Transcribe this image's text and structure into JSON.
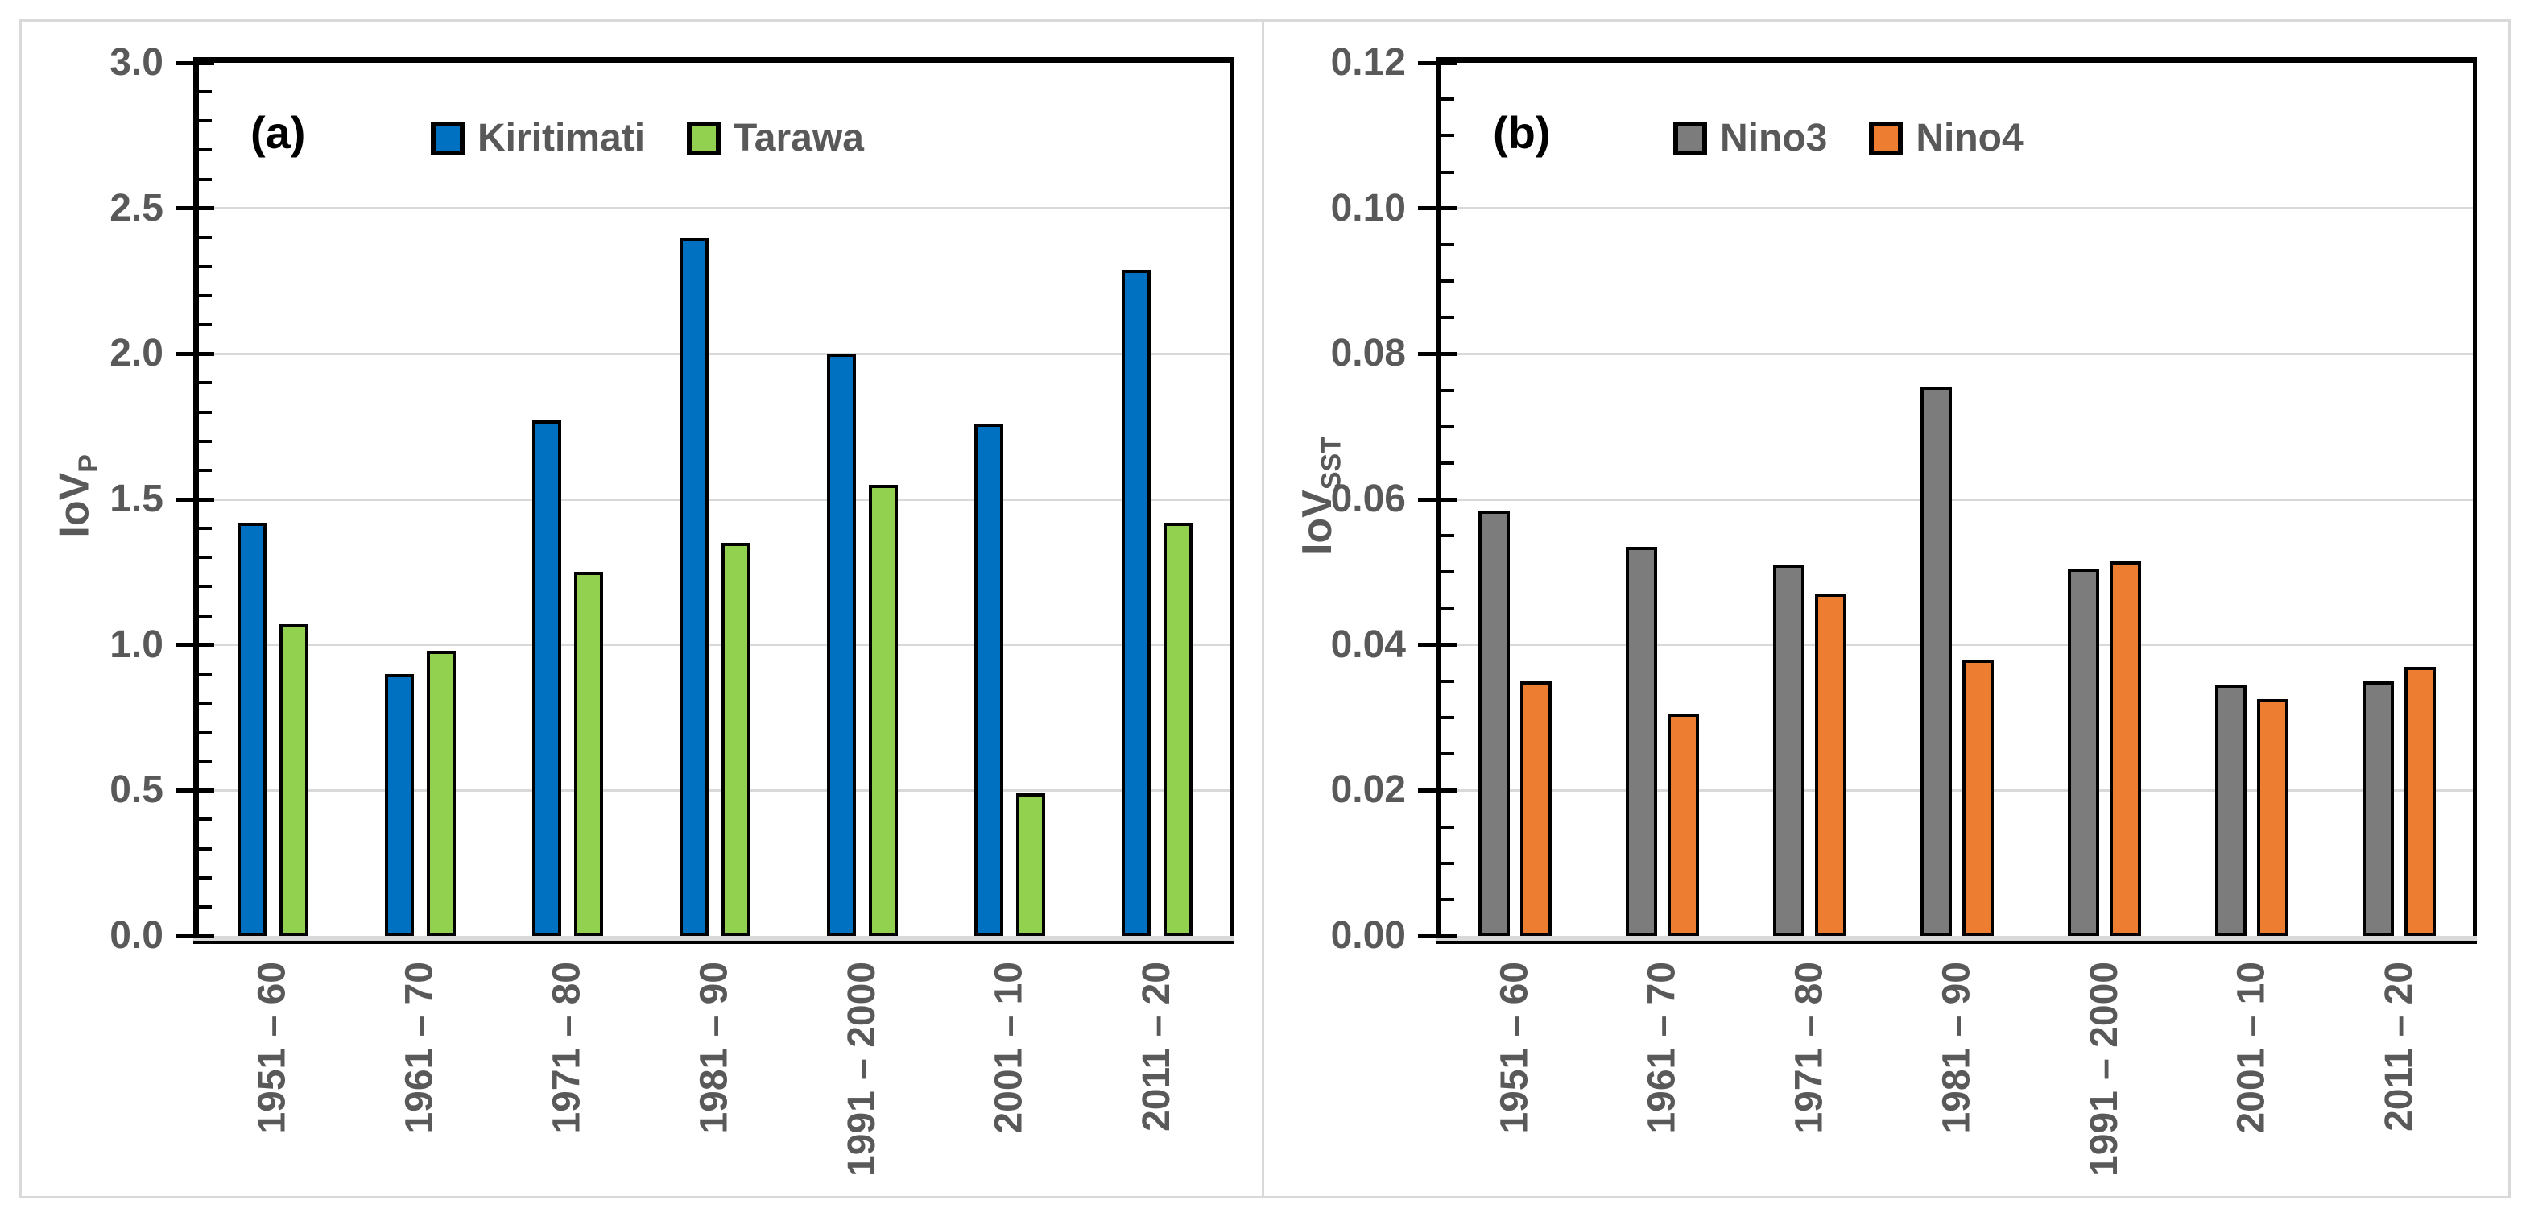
{
  "style": {
    "background": "#FFFFFF",
    "panel_border_color": "#D9D9D9",
    "grid_color": "#D9D9D9",
    "axis_color": "#000000",
    "text_color": "#595959",
    "panel_letter_color": "#000000"
  },
  "chart_data": [
    {
      "type": "bar",
      "panel": "a",
      "label": "(a)",
      "categories": [
        "1951 – 60",
        "1961 – 70",
        "1971 – 80",
        "1981 – 90",
        "1991 – 2000",
        "2001 – 10",
        "2011 – 20"
      ],
      "series": [
        {
          "name": "Kiritimati",
          "color": "#0070C0",
          "values": [
            1.42,
            0.9,
            1.77,
            2.4,
            2.0,
            1.76,
            2.29
          ]
        },
        {
          "name": "Tarawa",
          "color": "#92D050",
          "values": [
            1.07,
            0.98,
            1.25,
            1.35,
            1.55,
            0.49,
            1.42
          ]
        }
      ],
      "ylabel": "IoV",
      "ylabel_sub": "P",
      "ylim": [
        0,
        3.0
      ],
      "ytick_step": 0.5,
      "minor_tick_step": 0.1,
      "ytick_labels": [
        "3.0",
        "2.5",
        "2.0",
        "1.5",
        "1.0",
        "0.5",
        "0.0"
      ],
      "grid": true,
      "legend_position": "top-center"
    },
    {
      "type": "bar",
      "panel": "b",
      "label": "(b)",
      "categories": [
        "1951 – 60",
        "1961 – 70",
        "1971 – 80",
        "1981 – 90",
        "1991 – 2000",
        "2001 – 10",
        "2011 – 20"
      ],
      "series": [
        {
          "name": "Nino3",
          "color": "#7C7C7C",
          "values": [
            0.0585,
            0.0535,
            0.051,
            0.0755,
            0.0505,
            0.0345,
            0.035
          ]
        },
        {
          "name": "Nino4",
          "color": "#ED7D31",
          "values": [
            0.035,
            0.0305,
            0.047,
            0.038,
            0.0515,
            0.0325,
            0.037
          ]
        }
      ],
      "ylabel": "IoV",
      "ylabel_sub": "SST",
      "ylim": [
        0,
        0.12
      ],
      "ytick_step": 0.02,
      "minor_tick_step": 0.005,
      "ytick_labels": [
        "0.12",
        "0.10",
        "0.08",
        "0.06",
        "0.04",
        "0.02",
        "0.00"
      ],
      "grid": true,
      "legend_position": "top-center"
    }
  ]
}
